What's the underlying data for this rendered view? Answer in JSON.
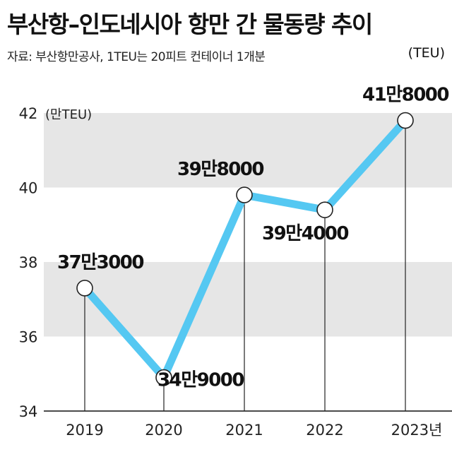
{
  "title": "부산항–인도네시아 항만 간 물동량 추이",
  "source": "자료: 부산항만공사, 1TEU는 20피트 컨테이너 1개분",
  "unit": "(TEU)",
  "chart_data": {
    "type": "line",
    "title": "부산항–인도네시아 항만 간 물동량 추이",
    "ylabel": "(만TEU)",
    "categories": [
      "2019",
      "2020",
      "2021",
      "2022",
      "2023년"
    ],
    "series": [
      {
        "values": [
          37.3,
          34.9,
          39.8,
          39.4,
          41.8
        ],
        "labels": [
          "37만3000",
          "34만9000",
          "39만8000",
          "39만4000",
          "41만8000"
        ]
      }
    ],
    "ylim": [
      34,
      42
    ],
    "yticks": [
      34,
      36,
      38,
      40,
      42
    ],
    "line_color": "#55c8f2",
    "band_color": "#e6e6e6",
    "grid": "alternating horizontal bands"
  }
}
